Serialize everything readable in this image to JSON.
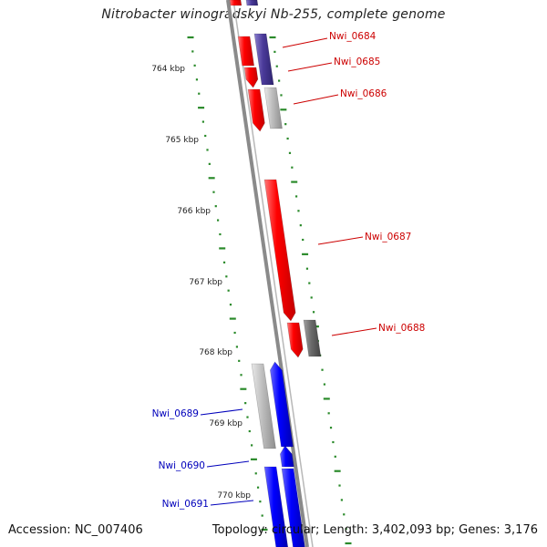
{
  "title": "Nitrobacter winogradskyi Nb-255, complete genome",
  "accession": "Accession: NC_007406",
  "summary": "Topology: circular; Length: 3,402,093 bp; Genes: 3,176",
  "colors": {
    "tick": "#2a8a2a",
    "backbone": "#8a8a8a",
    "forward_label": "#cc0000",
    "reverse_label": "#0000bb",
    "red": "#ff0000",
    "blue": "#0000ff",
    "purple": "#4a3a99",
    "gray": "#c0c0c0",
    "darkgray": "#707070"
  },
  "scale_labels": [
    "764 kbp",
    "765 kbp",
    "766 kbp",
    "767 kbp",
    "768 kbp",
    "769 kbp",
    "770 kbp"
  ],
  "genes": [
    {
      "id": "Nwi_0684",
      "label": "Nwi_0684",
      "strand": "forward"
    },
    {
      "id": "Nwi_0685",
      "label": "Nwi_0685",
      "strand": "forward"
    },
    {
      "id": "Nwi_0686",
      "label": "Nwi_0686",
      "strand": "forward"
    },
    {
      "id": "Nwi_0687",
      "label": "Nwi_0687",
      "strand": "forward"
    },
    {
      "id": "Nwi_0688",
      "label": "Nwi_0688",
      "strand": "forward"
    },
    {
      "id": "Nwi_0689",
      "label": "Nwi_0689",
      "strand": "reverse"
    },
    {
      "id": "Nwi_0690",
      "label": "Nwi_0690",
      "strand": "reverse"
    },
    {
      "id": "Nwi_0691",
      "label": "Nwi_0691",
      "strand": "reverse"
    }
  ]
}
